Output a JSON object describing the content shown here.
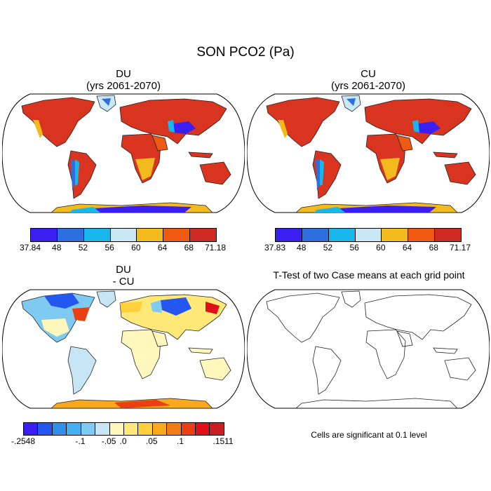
{
  "main_title": "SON PCO2 (Pa)",
  "panels": {
    "du": {
      "title": "DU",
      "subtitle": "(yrs 2061-2070)"
    },
    "cu": {
      "title": "CU",
      "subtitle": "(yrs 2061-2070)"
    },
    "diff": {
      "title": "DU",
      "subtitle": "- CU"
    },
    "ttest": {
      "title": "T-Test of two Case means at each grid point",
      "note": "Cells are significant at 0.1 level"
    }
  },
  "colorbars": {
    "du": {
      "colors": [
        "#3a1ef2",
        "#2e6fe0",
        "#17b7ec",
        "#c8e8f5",
        "#f3ba1e",
        "#ee5a12",
        "#cf2b22"
      ],
      "labels": [
        "37.84",
        "48",
        "52",
        "56",
        "60",
        "64",
        "68",
        "71.18"
      ]
    },
    "cu": {
      "colors": [
        "#3a1ef2",
        "#2e6fe0",
        "#17b7ec",
        "#c8e8f5",
        "#f3ba1e",
        "#ee5a12",
        "#cf2b22"
      ],
      "labels": [
        "37.83",
        "48",
        "52",
        "56",
        "60",
        "64",
        "68",
        "71.17"
      ]
    },
    "diff": {
      "colors": [
        "#3a1ef2",
        "#2457f0",
        "#2f8fe9",
        "#43aef0",
        "#7ecaf0",
        "#c7e6f5",
        "#fff7bc",
        "#fee878",
        "#fdcf3c",
        "#f9a91d",
        "#f47a16",
        "#ea3f12",
        "#e0101a",
        "#c81e24"
      ],
      "labels": [
        "-.2548",
        "-.1",
        "-.05",
        ".0",
        ".05",
        ".1",
        ".1511"
      ]
    }
  }
}
